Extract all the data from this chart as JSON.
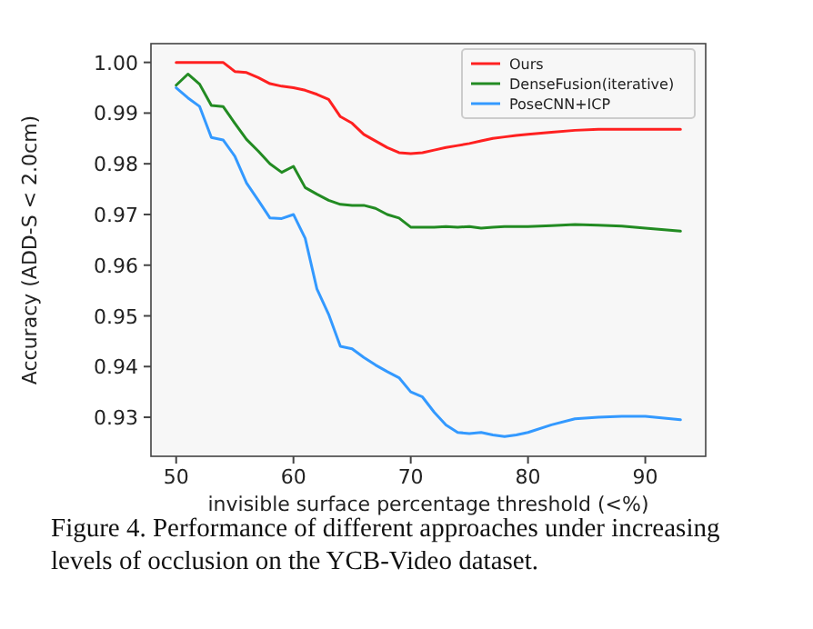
{
  "chart_data": {
    "type": "line",
    "xlabel": "invisible surface percentage threshold (<%)",
    "ylabel": "Accuracy (ADD-S < 2.0cm)",
    "x": [
      50,
      51,
      52,
      53,
      54,
      55,
      56,
      57,
      58,
      59,
      60,
      61,
      62,
      63,
      64,
      65,
      66,
      67,
      68,
      69,
      70,
      71,
      72,
      73,
      74,
      75,
      76,
      77,
      78,
      79,
      80,
      82,
      84,
      86,
      88,
      90,
      93
    ],
    "series": [
      {
        "name": "Ours",
        "color": "#ff2020",
        "values": [
          1.0,
          1.0,
          1.0,
          1.0,
          1.0,
          0.9982,
          0.998,
          0.997,
          0.9958,
          0.9953,
          0.995,
          0.9945,
          0.9937,
          0.9927,
          0.9893,
          0.988,
          0.9858,
          0.9845,
          0.9832,
          0.9822,
          0.982,
          0.9822,
          0.9827,
          0.9832,
          0.9836,
          0.984,
          0.9845,
          0.985,
          0.9853,
          0.9856,
          0.9858,
          0.9862,
          0.9866,
          0.9868,
          0.9868,
          0.9868,
          0.9868
        ]
      },
      {
        "name": "DenseFusion(iterative)",
        "color": "#228b22",
        "values": [
          0.9955,
          0.9977,
          0.9957,
          0.9915,
          0.9913,
          0.988,
          0.9848,
          0.9825,
          0.98,
          0.9783,
          0.9795,
          0.9753,
          0.974,
          0.9728,
          0.972,
          0.9718,
          0.9718,
          0.9712,
          0.97,
          0.9693,
          0.9675,
          0.9675,
          0.9675,
          0.9676,
          0.9675,
          0.9676,
          0.9673,
          0.9675,
          0.9676,
          0.9676,
          0.9676,
          0.9678,
          0.968,
          0.9679,
          0.9677,
          0.9673,
          0.9667
        ]
      },
      {
        "name": "PoseCNN+ICP",
        "color": "#3399ff",
        "values": [
          0.995,
          0.993,
          0.9913,
          0.9852,
          0.9847,
          0.9815,
          0.9762,
          0.9728,
          0.9693,
          0.9692,
          0.97,
          0.9653,
          0.9553,
          0.9503,
          0.944,
          0.9435,
          0.9418,
          0.9403,
          0.939,
          0.9378,
          0.935,
          0.934,
          0.931,
          0.9285,
          0.927,
          0.9268,
          0.927,
          0.9265,
          0.9262,
          0.9265,
          0.927,
          0.9285,
          0.9297,
          0.93,
          0.9302,
          0.9302,
          0.9295
        ]
      }
    ],
    "xlim": [
      47.85,
      95.15
    ],
    "xticks": [
      50,
      60,
      70,
      80,
      90
    ],
    "ylim": [
      0.9223,
      1.0037
    ],
    "yticks": [
      {
        "value": 0.93,
        "label": "0.93"
      },
      {
        "value": 0.94,
        "label": "0.94"
      },
      {
        "value": 0.95,
        "label": "0.95"
      },
      {
        "value": 0.96,
        "label": "0.96"
      },
      {
        "value": 0.97,
        "label": "0.97"
      },
      {
        "value": 0.98,
        "label": "0.98"
      },
      {
        "value": 0.99,
        "label": "0.99"
      },
      {
        "value": 1.0,
        "label": "1.00"
      }
    ],
    "legend": "top right",
    "grid": false,
    "annotations": [
      "Figure 4.   Performance of different approaches under increasing levels of occlusion on the YCB-Video dataset."
    ]
  }
}
